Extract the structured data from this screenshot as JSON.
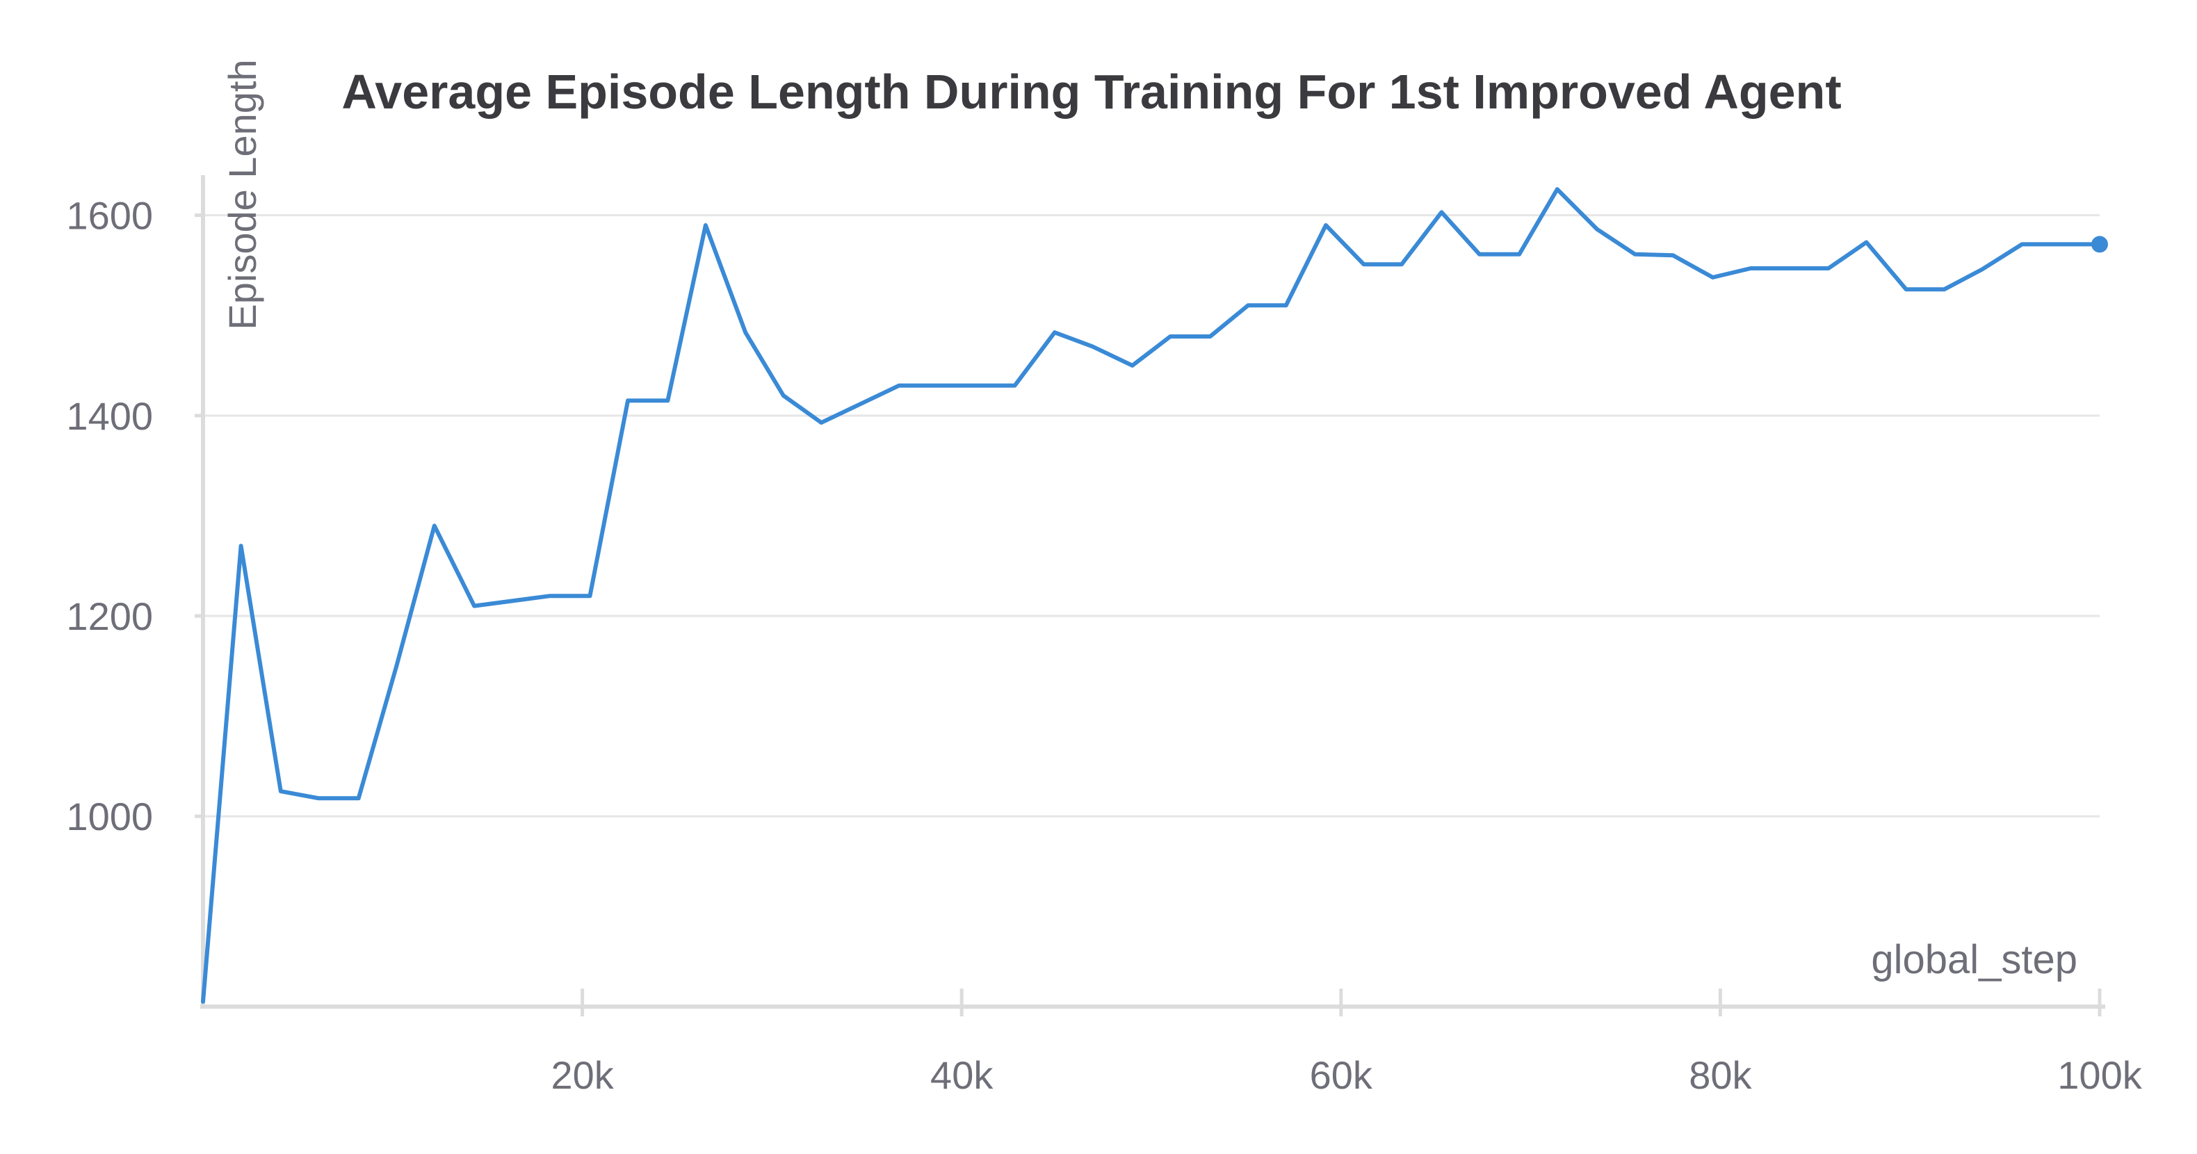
{
  "chart_data": {
    "type": "line",
    "title": "Average Episode Length During Training For 1st Improved Agent",
    "xlabel": "global_step",
    "ylabel": "Episode Length",
    "xlim": [
      0,
      100000
    ],
    "ylim": [
      810,
      1640
    ],
    "grid": true,
    "x_ticks": [
      {
        "value": 20000,
        "label": "20k"
      },
      {
        "value": 40000,
        "label": "40k"
      },
      {
        "value": 60000,
        "label": "60k"
      },
      {
        "value": 80000,
        "label": "80k"
      },
      {
        "value": 100000,
        "label": "100k"
      }
    ],
    "y_ticks": [
      {
        "value": 1000,
        "label": "1000"
      },
      {
        "value": 1200,
        "label": "1200"
      },
      {
        "value": 1400,
        "label": "1400"
      },
      {
        "value": 1600,
        "label": "1600"
      }
    ],
    "colors": {
      "line": "#3a8ad6",
      "grid": "#e6e6e6",
      "axis": "#dcdcdc",
      "text": "#6e6e78",
      "title": "#3a3a3f"
    },
    "series": [
      {
        "x": [
          0,
          2000,
          4100,
          6100,
          8200,
          10200,
          12200,
          14300,
          18300,
          20400,
          22400,
          24500,
          26500,
          28600,
          30600,
          32600,
          36700,
          38800,
          40800,
          42800,
          44900,
          46900,
          49000,
          51000,
          53100,
          55100,
          57100,
          59200,
          61200,
          63200,
          65300,
          67300,
          69400,
          71400,
          73500,
          75500,
          77500,
          79600,
          81600,
          83600,
          85700,
          87700,
          89800,
          91800,
          93800,
          95900,
          97900,
          100000
        ],
        "y": [
          815,
          1270,
          1025,
          1018,
          1018,
          1150,
          1290,
          1210,
          1220,
          1220,
          1415,
          1415,
          1590,
          1483,
          1420,
          1393,
          1430,
          1430,
          1430,
          1430,
          1483,
          1469,
          1450,
          1479,
          1479,
          1510,
          1510,
          1590,
          1551,
          1551,
          1603,
          1561,
          1561,
          1626,
          1586,
          1561,
          1560,
          1538,
          1547,
          1547,
          1547,
          1573,
          1526,
          1526,
          1546,
          1571,
          1571,
          1571
        ]
      }
    ]
  }
}
